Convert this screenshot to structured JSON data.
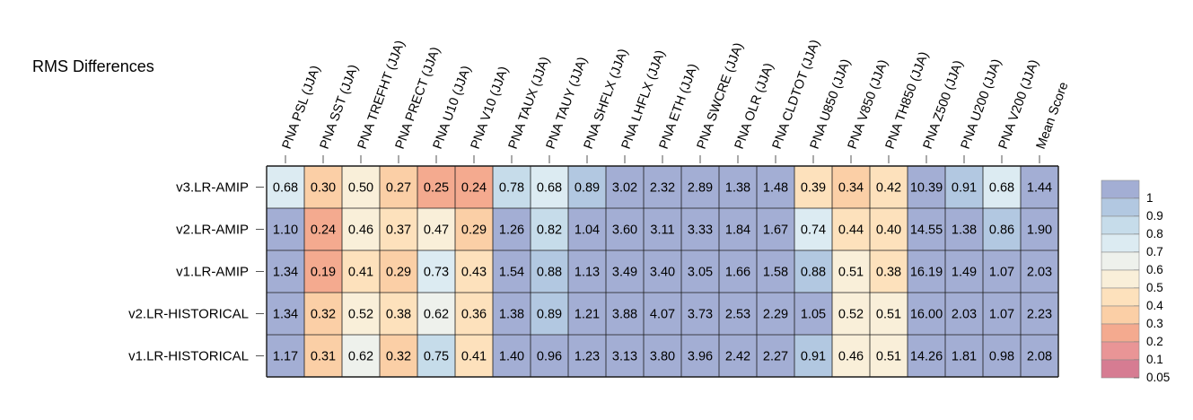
{
  "chart_data": {
    "type": "heatmap",
    "title": "RMS Differences",
    "columns": [
      "PNA PSL (JJA)",
      "PNA SST (JJA)",
      "PNA TREFHT (JJA)",
      "PNA PRECT (JJA)",
      "PNA U10 (JJA)",
      "PNA V10 (JJA)",
      "PNA TAUX (JJA)",
      "PNA TAUY (JJA)",
      "PNA SHFLX (JJA)",
      "PNA LHFLX (JJA)",
      "PNA ETH (JJA)",
      "PNA SWCRE (JJA)",
      "PNA OLR (JJA)",
      "PNA CLDTOT (JJA)",
      "PNA U850 (JJA)",
      "PNA V850 (JJA)",
      "PNA TH850 (JJA)",
      "PNA Z500 (JJA)",
      "PNA U200 (JJA)",
      "PNA V200 (JJA)",
      "Mean Score"
    ],
    "rows": [
      "v3.LR-AMIP",
      "v2.LR-AMIP",
      "v1.LR-AMIP",
      "v2.LR-HISTORICAL",
      "v1.LR-HISTORICAL"
    ],
    "values": [
      [
        "0.68",
        "0.30",
        "0.50",
        "0.27",
        "0.25",
        "0.24",
        "0.78",
        "0.68",
        "0.89",
        "3.02",
        "2.32",
        "2.89",
        "1.38",
        "1.48",
        "0.39",
        "0.34",
        "0.42",
        "10.39",
        "0.91",
        "0.68",
        "1.44"
      ],
      [
        "1.10",
        "0.24",
        "0.46",
        "0.37",
        "0.47",
        "0.29",
        "1.26",
        "0.82",
        "1.04",
        "3.60",
        "3.11",
        "3.33",
        "1.84",
        "1.67",
        "0.74",
        "0.44",
        "0.40",
        "14.55",
        "1.38",
        "0.86",
        "1.90"
      ],
      [
        "1.34",
        "0.19",
        "0.41",
        "0.29",
        "0.73",
        "0.43",
        "1.54",
        "0.88",
        "1.13",
        "3.49",
        "3.40",
        "3.05",
        "1.66",
        "1.58",
        "0.88",
        "0.51",
        "0.38",
        "16.19",
        "1.49",
        "1.07",
        "2.03"
      ],
      [
        "1.34",
        "0.32",
        "0.52",
        "0.38",
        "0.62",
        "0.36",
        "1.38",
        "0.89",
        "1.21",
        "3.88",
        "4.07",
        "3.73",
        "2.53",
        "2.29",
        "1.05",
        "0.52",
        "0.51",
        "16.00",
        "2.03",
        "1.07",
        "2.23"
      ],
      [
        "1.17",
        "0.31",
        "0.62",
        "0.32",
        "0.75",
        "0.41",
        "1.40",
        "0.96",
        "1.23",
        "3.13",
        "3.80",
        "3.96",
        "2.42",
        "2.27",
        "0.91",
        "0.46",
        "0.51",
        "14.26",
        "1.81",
        "0.98",
        "2.08"
      ]
    ],
    "ratio": [
      [
        0.7,
        0.29,
        0.54,
        0.25,
        0.24,
        0.23,
        0.78,
        0.7,
        0.9,
        1.0,
        1.0,
        1.0,
        1.0,
        1.0,
        0.38,
        0.34,
        0.42,
        1.0,
        0.91,
        0.71,
        1.0
      ],
      [
        1.0,
        0.24,
        0.46,
        0.36,
        0.47,
        0.29,
        1.0,
        0.82,
        1.0,
        1.0,
        1.0,
        1.0,
        1.0,
        1.0,
        0.74,
        0.44,
        0.4,
        1.0,
        1.0,
        0.86,
        1.0
      ],
      [
        1.0,
        0.19,
        0.41,
        0.29,
        0.73,
        0.43,
        1.0,
        0.88,
        1.0,
        1.0,
        1.0,
        1.0,
        1.0,
        1.0,
        0.88,
        0.51,
        0.38,
        1.0,
        1.0,
        1.0,
        1.0
      ],
      [
        1.0,
        0.32,
        0.52,
        0.38,
        0.62,
        0.36,
        1.0,
        0.89,
        1.0,
        1.0,
        1.0,
        1.0,
        1.0,
        1.0,
        1.0,
        0.52,
        0.51,
        1.0,
        1.0,
        1.0,
        1.0
      ],
      [
        1.0,
        0.31,
        0.62,
        0.32,
        0.75,
        0.41,
        1.0,
        0.96,
        1.0,
        1.0,
        1.0,
        1.0,
        1.0,
        1.0,
        0.91,
        0.46,
        0.51,
        1.0,
        1.0,
        0.98,
        1.0
      ]
    ],
    "colorbar": {
      "levels": [
        "1",
        "0.9",
        "0.8",
        "0.7",
        "0.6",
        "0.5",
        "0.4",
        "0.3",
        "0.2",
        "0.1",
        "0.05"
      ],
      "colors": [
        "#a3aed4",
        "#b2c8e1",
        "#c6dcea",
        "#dcebf2",
        "#eef1ec",
        "#f9efd9",
        "#fde1bc",
        "#fbcfa6",
        "#f4aa8f",
        "#e99596",
        "#d67c92"
      ]
    },
    "grid": true
  }
}
